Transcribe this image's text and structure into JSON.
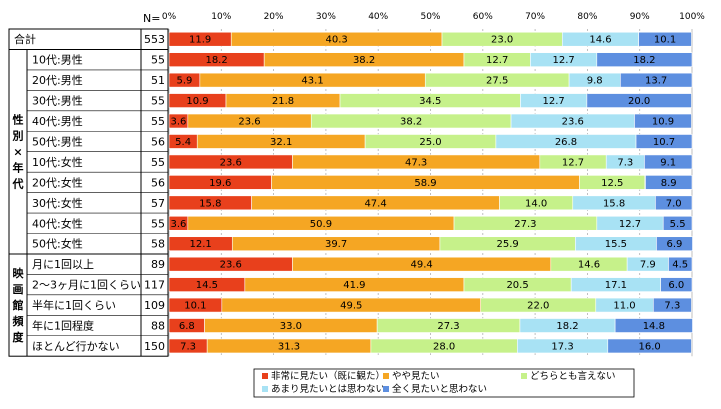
{
  "chart_data": {
    "type": "bar",
    "orientation": "horizontal",
    "stacked": true,
    "n_header": "N=",
    "x_ticks": [
      "0%",
      "10%",
      "20%",
      "30%",
      "40%",
      "50%",
      "60%",
      "70%",
      "80%",
      "90%",
      "100%"
    ],
    "xlim": [
      0,
      100
    ],
    "grid": true,
    "legend_position": "bottom",
    "series": [
      {
        "name": "非常に見たい（既に観た）",
        "color": "#e8401c"
      },
      {
        "name": "やや見たい",
        "color": "#f5a623"
      },
      {
        "name": "どちらとも言えない",
        "color": "#c6f18a"
      },
      {
        "name": "あまり見たいとは思わない",
        "color": "#a8e2f4"
      },
      {
        "name": "全く見たいと思わない",
        "color": "#5d8fe0"
      }
    ],
    "groups": [
      {
        "label": "",
        "rows": 1
      },
      {
        "label": "性別×年代",
        "rows": 10
      },
      {
        "label": "映画館頻度",
        "rows": 5
      }
    ],
    "rows": [
      {
        "category": "合計",
        "n": "553",
        "values": [
          11.9,
          40.3,
          23.0,
          14.6,
          10.1
        ]
      },
      {
        "category": "10代:男性",
        "n": "55",
        "values": [
          18.2,
          38.2,
          12.7,
          12.7,
          18.2
        ]
      },
      {
        "category": "20代:男性",
        "n": "51",
        "values": [
          5.9,
          43.1,
          27.5,
          9.8,
          13.7
        ]
      },
      {
        "category": "30代:男性",
        "n": "55",
        "values": [
          10.9,
          21.8,
          34.5,
          12.7,
          20.0
        ]
      },
      {
        "category": "40代:男性",
        "n": "55",
        "values": [
          3.6,
          23.6,
          38.2,
          23.6,
          10.9
        ]
      },
      {
        "category": "50代:男性",
        "n": "56",
        "values": [
          5.4,
          32.1,
          25.0,
          26.8,
          10.7
        ]
      },
      {
        "category": "10代:女性",
        "n": "55",
        "values": [
          23.6,
          47.3,
          12.7,
          7.3,
          9.1
        ]
      },
      {
        "category": "20代:女性",
        "n": "56",
        "values": [
          19.6,
          58.9,
          12.5,
          null,
          8.9
        ]
      },
      {
        "category": "30代:女性",
        "n": "57",
        "values": [
          15.8,
          47.4,
          14.0,
          15.8,
          7.0
        ]
      },
      {
        "category": "40代:女性",
        "n": "55",
        "values": [
          3.6,
          50.9,
          27.3,
          12.7,
          5.5
        ]
      },
      {
        "category": "50代:女性",
        "n": "58",
        "values": [
          12.1,
          39.7,
          25.9,
          15.5,
          6.9
        ]
      },
      {
        "category": "月に1回以上",
        "n": "89",
        "values": [
          23.6,
          49.4,
          14.6,
          7.9,
          4.5
        ]
      },
      {
        "category": "2～3ヶ月に1回くらい",
        "n": "117",
        "values": [
          14.5,
          41.9,
          20.5,
          17.1,
          6.0
        ]
      },
      {
        "category": "半年に1回くらい",
        "n": "109",
        "values": [
          10.1,
          49.5,
          22.0,
          11.0,
          7.3
        ]
      },
      {
        "category": "年に1回程度",
        "n": "88",
        "values": [
          6.8,
          33.0,
          27.3,
          18.2,
          14.8
        ]
      },
      {
        "category": "ほとんど行かない",
        "n": "150",
        "values": [
          7.3,
          31.3,
          28.0,
          17.3,
          16.0
        ]
      }
    ]
  }
}
